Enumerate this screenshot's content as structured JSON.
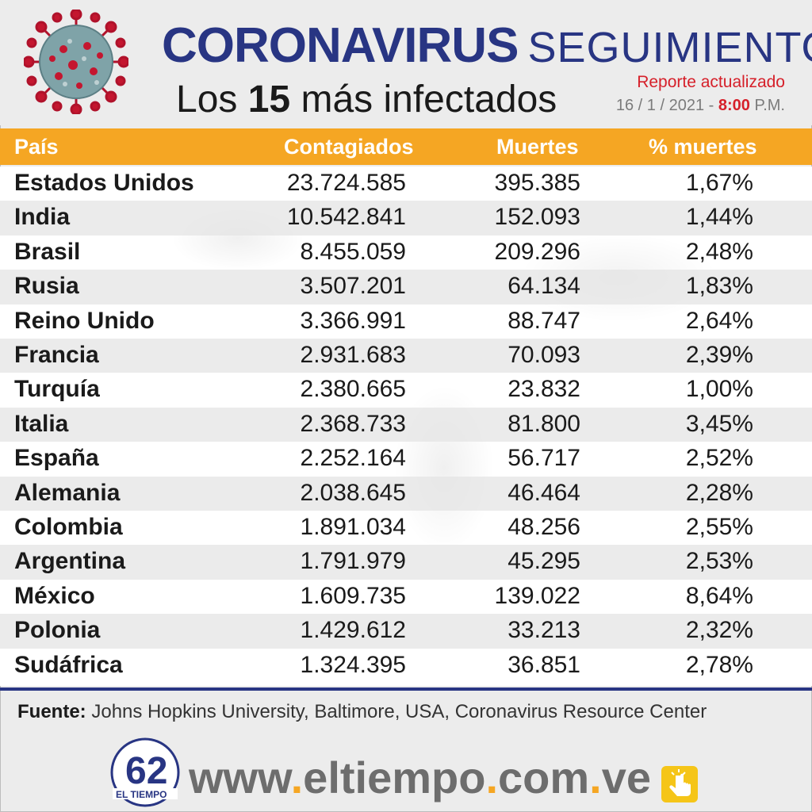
{
  "header": {
    "title_main": "CORONAVIRUS",
    "title_secondary": "SEGUIMIENTO",
    "subtitle_prefix": "Los",
    "subtitle_number": "15",
    "subtitle_suffix": "más infectados",
    "report_label": "Reporte actualizado",
    "report_date": "16 / 1 / 2021 -",
    "report_time": "8:00",
    "report_ampm": "P.M."
  },
  "table": {
    "headers": [
      "País",
      "Contagiados",
      "Muertes",
      "% muertes"
    ],
    "rows": [
      {
        "country": "Estados Unidos",
        "cases": "23.724.585",
        "deaths": "395.385",
        "pct": "1,67%"
      },
      {
        "country": "India",
        "cases": "10.542.841",
        "deaths": "152.093",
        "pct": "1,44%"
      },
      {
        "country": "Brasil",
        "cases": "8.455.059",
        "deaths": "209.296",
        "pct": "2,48%"
      },
      {
        "country": "Rusia",
        "cases": "3.507.201",
        "deaths": "64.134",
        "pct": "1,83%"
      },
      {
        "country": "Reino Unido",
        "cases": "3.366.991",
        "deaths": "88.747",
        "pct": "2,64%"
      },
      {
        "country": "Francia",
        "cases": "2.931.683",
        "deaths": "70.093",
        "pct": "2,39%"
      },
      {
        "country": "Turquía",
        "cases": "2.380.665",
        "deaths": "23.832",
        "pct": "1,00%"
      },
      {
        "country": "Italia",
        "cases": "2.368.733",
        "deaths": "81.800",
        "pct": "3,45%"
      },
      {
        "country": "España",
        "cases": "2.252.164",
        "deaths": "56.717",
        "pct": "2,52%"
      },
      {
        "country": "Alemania",
        "cases": "2.038.645",
        "deaths": "46.464",
        "pct": "2,28%"
      },
      {
        "country": "Colombia",
        "cases": "1.891.034",
        "deaths": "48.256",
        "pct": "2,55%"
      },
      {
        "country": "Argentina",
        "cases": "1.791.979",
        "deaths": "45.295",
        "pct": "2,53%"
      },
      {
        "country": "México",
        "cases": "1.609.735",
        "deaths": "139.022",
        "pct": "8,64%"
      },
      {
        "country": "Polonia",
        "cases": "1.429.612",
        "deaths": "33.213",
        "pct": "2,32%"
      },
      {
        "country": "Sudáfrica",
        "cases": "1.324.395",
        "deaths": "36.851",
        "pct": "2,78%"
      }
    ]
  },
  "source": {
    "label": "Fuente:",
    "text": "Johns Hopkins University, Baltimore, USA, Coronavirus Resource Center"
  },
  "footer": {
    "logo_number": "62",
    "logo_name": "EL TIEMPO",
    "url_www": "www",
    "url_dot1": ".",
    "url_name": "eltiempo",
    "url_dot2": ".",
    "url_com": "com",
    "url_dot3": ".",
    "url_ve": "ve",
    "icon": "click-hand-icon"
  },
  "colors": {
    "accent": "#f5a623",
    "brand_blue": "#283583",
    "alert_red": "#d6202a"
  }
}
